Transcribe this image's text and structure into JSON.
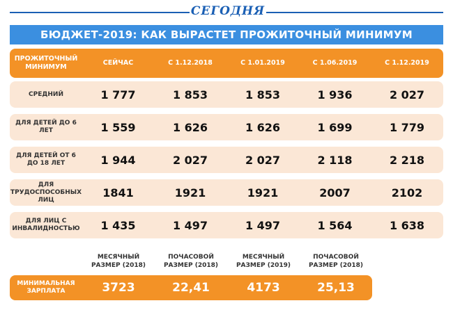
{
  "brand": "СЕГОДНЯ",
  "title": "БЮДЖЕТ-2019: КАК ВЫРАСТЕТ ПРОЖИТОЧНЫЙ МИНИМУМ",
  "colors": {
    "blue": "#3b8fe0",
    "brand_blue": "#1a5fb4",
    "orange": "#f39226",
    "row_bg": "#fbe7d6"
  },
  "table": {
    "headers": [
      "ПРОЖИТОЧНЫЙ МИНИМУМ",
      "СЕЙЧАС",
      "С 1.12.2018",
      "С 1.01.2019",
      "С 1.06.2019",
      "С 1.12.2019"
    ],
    "rows": [
      {
        "label": "СРЕДНИЙ",
        "values": [
          "1 777",
          "1 853",
          "1 853",
          "1 936",
          "2 027"
        ]
      },
      {
        "label": "ДЛЯ ДЕТЕЙ ДО 6 ЛЕТ",
        "values": [
          "1 559",
          "1 626",
          "1 626",
          "1 699",
          "1 779"
        ]
      },
      {
        "label": "ДЛЯ ДЕТЕЙ ОТ 6 ДО 18 ЛЕТ",
        "values": [
          "1 944",
          "2 027",
          "2 027",
          "2 118",
          "2 218"
        ]
      },
      {
        "label": "ДЛЯ ТРУДОСПОСОБНЫХ ЛИЦ",
        "values": [
          "1841",
          "1921",
          "1921",
          "2007",
          "2102"
        ]
      },
      {
        "label": "ДЛЯ ЛИЦ С ИНВАЛИДНОСТЬЮ",
        "values": [
          "1 435",
          "1 497",
          "1 497",
          "1 564",
          "1 638"
        ]
      }
    ]
  },
  "min_wage": {
    "label": "МИНИМАЛЬНАЯ ЗАРПЛАТА",
    "headers": [
      "МЕСЯЧНЫЙ РАЗМЕР (2018)",
      "ПОЧАСОВОЙ РАЗМЕР (2018)",
      "МЕСЯЧНЫЙ РАЗМЕР (2019)",
      "ПОЧАСОВОЙ РАЗМЕР (2018)"
    ],
    "values": [
      "3723",
      "22,41",
      "4173",
      "25,13"
    ]
  }
}
